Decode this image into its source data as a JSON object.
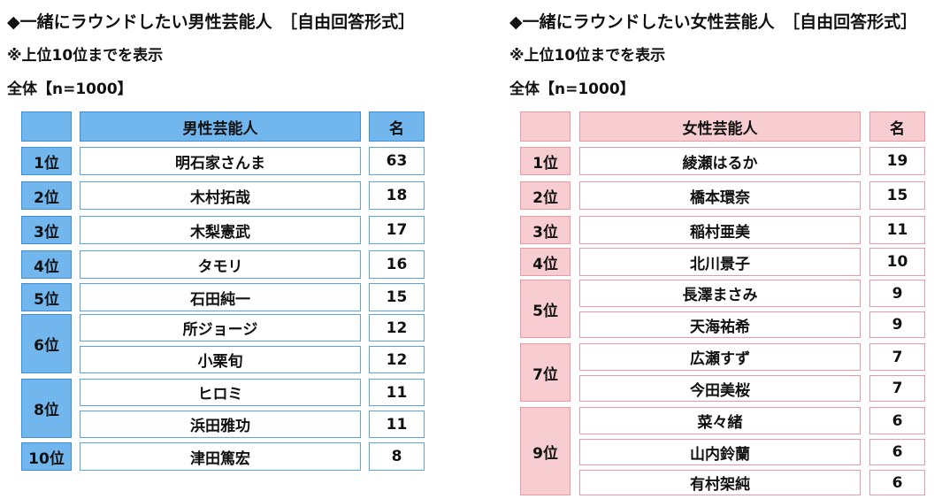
{
  "male": {
    "title": "◆一緒にラウンドしたい男性芸能人　［自由回答形式］",
    "note": "※上位10位までを表示",
    "base": "全体【n=1000】",
    "header_name": "男性芸能人",
    "header_count": "名",
    "header_rank": "",
    "rows": [
      {
        "rank": "1位",
        "name": "明石家さんま",
        "count": "63"
      },
      {
        "rank": "2位",
        "name": "木村拓哉",
        "count": "18"
      },
      {
        "rank": "3位",
        "name": "木梨憲武",
        "count": "17"
      },
      {
        "rank": "4位",
        "name": "タモリ",
        "count": "16"
      },
      {
        "rank": "5位",
        "name": "石田純一",
        "count": "15"
      },
      {
        "rank": "6位",
        "name": "所ジョージ",
        "count": "12"
      },
      {
        "rank": "",
        "name": "小栗旬",
        "count": "12"
      },
      {
        "rank": "8位",
        "name": "ヒロミ",
        "count": "11"
      },
      {
        "rank": "",
        "name": "浜田雅功",
        "count": "11"
      },
      {
        "rank": "10位",
        "name": "津田篤宏",
        "count": "8"
      }
    ]
  },
  "female": {
    "title": "◆一緒にラウンドしたい女性芸能人　［自由回答形式］",
    "note": "※上位10位までを表示",
    "base": "全体【n=1000】",
    "header_name": "女性芸能人",
    "header_count": "名",
    "header_rank": "",
    "rows": [
      {
        "rank": "1位",
        "name": "綾瀬はるか",
        "count": "19"
      },
      {
        "rank": "2位",
        "name": "橋本環奈",
        "count": "15"
      },
      {
        "rank": "3位",
        "name": "稲村亜美",
        "count": "11"
      },
      {
        "rank": "4位",
        "name": "北川景子",
        "count": "10"
      },
      {
        "rank": "5位",
        "name": "長澤まさみ",
        "count": "9"
      },
      {
        "rank": "",
        "name": "天海祐希",
        "count": "9"
      },
      {
        "rank": "7位",
        "name": "広瀬すず",
        "count": "7"
      },
      {
        "rank": "",
        "name": "今田美桜",
        "count": "7"
      },
      {
        "rank": "9位",
        "name": "菜々緒",
        "count": "6"
      },
      {
        "rank": "",
        "name": "山内鈴蘭",
        "count": "6"
      },
      {
        "rank": "",
        "name": "有村架純",
        "count": "6"
      }
    ]
  }
}
